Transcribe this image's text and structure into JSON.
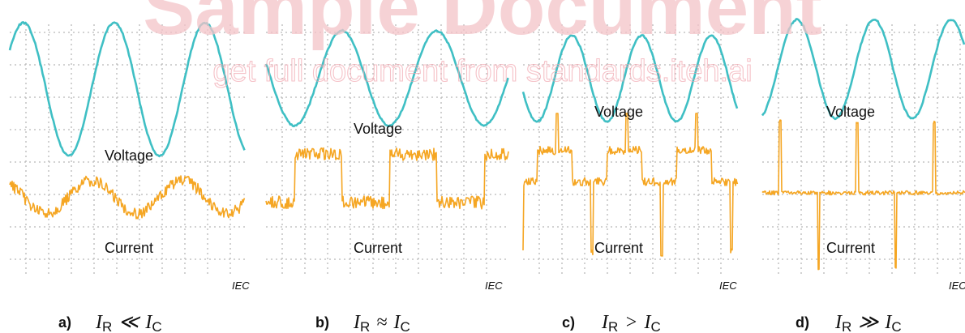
{
  "watermark": {
    "title": "Sample Document",
    "subtitle": "get full document from standards.iteh.ai"
  },
  "colors": {
    "voltage": "#3fbfc4",
    "current": "#f5a623",
    "grid": "#b8b8b8"
  },
  "chart_data": [
    {
      "type": "line",
      "panel": "a",
      "caption_letter": "a)",
      "caption_relation": "≪",
      "voltage_label": "Voltage",
      "current_label": "Current",
      "source": "IEC",
      "series": [
        {
          "name": "Voltage",
          "shape": "sinusoid",
          "cycles": 3
        },
        {
          "name": "Current",
          "shape": "noisy sinusoid in phase quadrature",
          "cycles": 3
        }
      ]
    },
    {
      "type": "line",
      "panel": "b",
      "caption_letter": "b)",
      "caption_relation": "≈",
      "voltage_label": "Voltage",
      "current_label": "Current",
      "source": "IEC",
      "series": [
        {
          "name": "Voltage",
          "shape": "sinusoid",
          "cycles": 2.5
        },
        {
          "name": "Current",
          "shape": "noisy square wave",
          "cycles": 2.5
        }
      ]
    },
    {
      "type": "line",
      "panel": "c",
      "caption_letter": "c)",
      "caption_relation": ">",
      "voltage_label": "Voltage",
      "current_label": "Current",
      "source": "IEC",
      "series": [
        {
          "name": "Voltage",
          "shape": "sinusoid",
          "cycles": 3
        },
        {
          "name": "Current",
          "shape": "pulses at peaks with plateaus",
          "cycles": 3
        }
      ]
    },
    {
      "type": "line",
      "panel": "d",
      "caption_letter": "d)",
      "caption_relation": "≫",
      "voltage_label": "Voltage",
      "current_label": "Current",
      "source": "IEC",
      "series": [
        {
          "name": "Voltage",
          "shape": "sinusoid",
          "cycles": 3
        },
        {
          "name": "Current",
          "shape": "sharp narrow pulses",
          "cycles": 3
        }
      ]
    }
  ],
  "caption_math": {
    "var": "I",
    "sub_r": "R",
    "sub_c": "C"
  }
}
